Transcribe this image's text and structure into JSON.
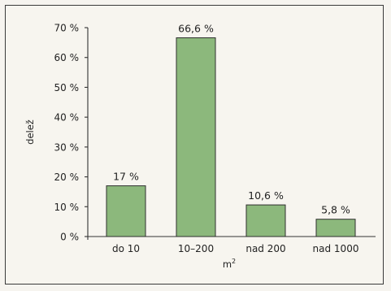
{
  "chart_data": {
    "type": "bar",
    "categories": [
      "do 10",
      "10–200",
      "nad 200",
      "nad 1000"
    ],
    "values": [
      17,
      66.6,
      10.6,
      5.8
    ],
    "value_labels": [
      "17 %",
      "66,6 %",
      "10,6 %",
      "5,8 %"
    ],
    "ylabel": "delež",
    "xlabel_base": "m",
    "xlabel_superscript": "2",
    "ylim": [
      0,
      70
    ],
    "yticks": [
      0,
      10,
      20,
      30,
      40,
      50,
      60,
      70
    ],
    "ytick_labels": [
      "0 %",
      "10 %",
      "20 %",
      "30 %",
      "40 %",
      "50 %",
      "60 %",
      "70 %"
    ],
    "bar_color": "#8cb87c",
    "bar_edge_color": "#2f2f2f",
    "grid": false
  }
}
